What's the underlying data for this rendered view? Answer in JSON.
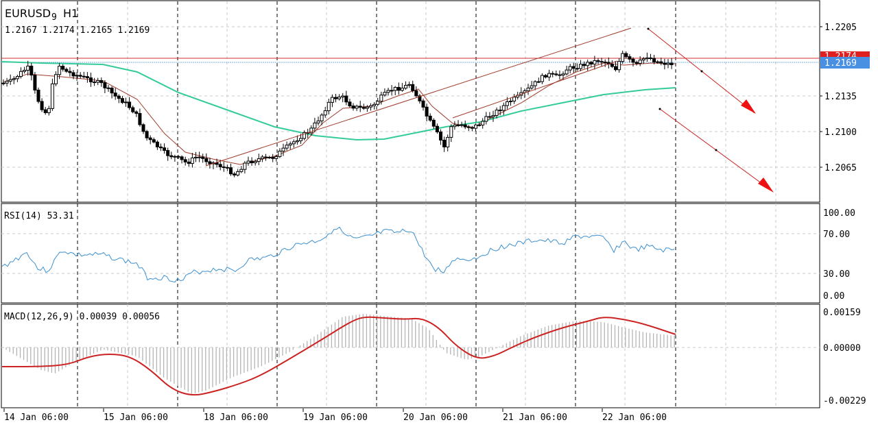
{
  "main_panel": {
    "symbol": "EURUSD",
    "symbol_sub": "9",
    "timeframe": "H1",
    "ohlc": "1.2167 1.2174 1.2165 1.2169",
    "price_ticks": [
      "1.2205",
      "1.2135",
      "1.2100",
      "1.2065"
    ],
    "bid_label": "1.2169",
    "ask_label": "1.2174",
    "bid_color": "#4a90e2",
    "ask_color": "#e02020"
  },
  "rsi_panel": {
    "label": "RSI(14) 53.31",
    "ticks": [
      "100.00",
      "70.00",
      "30.00",
      "0.00"
    ]
  },
  "macd_panel": {
    "label": "MACD(12,26,9) 0.00039 0.00056",
    "ticks": [
      "0.00159",
      "0.00000",
      "-0.00229"
    ]
  },
  "time_axis": [
    "14 Jan 06:00",
    "15 Jan 06:00",
    "18 Jan 06:00",
    "19 Jan 06:00",
    "20 Jan 06:00",
    "21 Jan 06:00",
    "22 Jan 06:00"
  ],
  "colors": {
    "ma_slow": "#33cc99",
    "ma_fast": "#a03a2a",
    "rsi_line": "#3a8fd0",
    "macd_signal": "#cc2222",
    "macd_hist": "#b4b4b4",
    "arrows": "#cc2222"
  },
  "chart_data": [
    {
      "type": "candlestick",
      "title": "EURUSD9, H1",
      "ylim": [
        1.203,
        1.222
      ],
      "series": [
        {
          "name": "price",
          "x": [
            "14 Jan 06:00",
            "15 Jan 06:00",
            "18 Jan 06:00",
            "19 Jan 06:00",
            "20 Jan 06:00",
            "21 Jan 06:00",
            "22 Jan 06:00"
          ],
          "close": [
            1.2163,
            1.216,
            1.2083,
            1.2133,
            1.2158,
            1.215,
            1.2178
          ]
        }
      ],
      "grid": true
    },
    {
      "type": "line",
      "title": "RSI(14)",
      "ylim": [
        0,
        100
      ],
      "series": [
        {
          "values": [
            47,
            55,
            49,
            25,
            36,
            74,
            48,
            58,
            68,
            70,
            53
          ]
        }
      ]
    },
    {
      "type": "bar",
      "title": "MACD(12,26,9)",
      "ylim": [
        -0.00229,
        0.00159
      ],
      "series": [
        {
          "values": [
            -0.0004,
            -0.0001,
            -0.0012,
            -0.0016,
            -0.0003,
            0.0015,
            0.0012,
            -0.0003,
            0.0006,
            0.0012,
            0.0004
          ]
        },
        {
          "values": [
            -0.0004,
            -0.0001,
            -0.001,
            -0.0019,
            -0.0009,
            0.0011,
            0.0012,
            -0.0004,
            0.0004,
            0.0011,
            0.0006
          ]
        }
      ]
    }
  ]
}
